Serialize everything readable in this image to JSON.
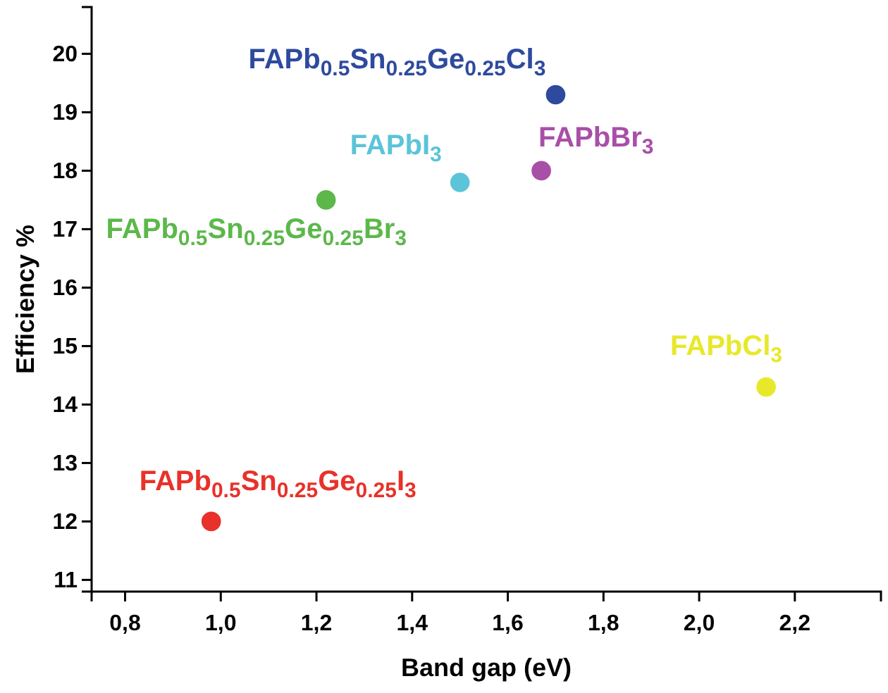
{
  "chart_data": {
    "type": "scatter",
    "xlabel": "Band gap (eV)",
    "ylabel": "Efficiency %",
    "xlim": [
      0.73,
      2.38
    ],
    "ylim": [
      10.8,
      20.8
    ],
    "xticks": [
      {
        "value": 0.8,
        "label": "0,8"
      },
      {
        "value": 1.0,
        "label": "1,0"
      },
      {
        "value": 1.2,
        "label": "1,2"
      },
      {
        "value": 1.4,
        "label": "1,4"
      },
      {
        "value": 1.6,
        "label": "1,6"
      },
      {
        "value": 1.8,
        "label": "1,8"
      },
      {
        "value": 2.0,
        "label": "2,0"
      },
      {
        "value": 2.2,
        "label": "2,2"
      }
    ],
    "yticks": [
      11,
      12,
      13,
      14,
      15,
      16,
      17,
      18,
      19,
      20
    ],
    "marker": "circle",
    "grid": false,
    "legend": false,
    "series": [
      {
        "name": "FAPb$_{0.5}$Sn$_{0.25}$Ge$_{0.25}$I$_{3}$",
        "color": "#e8312a",
        "x": [
          0.98
        ],
        "values": [
          12.0
        ]
      },
      {
        "name": "FAPb$_{0.5}$Sn$_{0.25}$Ge$_{0.25}$Br$_{3}$",
        "color": "#5cb84a",
        "x": [
          1.22
        ],
        "values": [
          17.5
        ]
      },
      {
        "name": "FAPbI$_{3}$",
        "color": "#5bc4d8",
        "x": [
          1.5
        ],
        "values": [
          17.8
        ]
      },
      {
        "name": "FAPbBr$_{3}$",
        "color": "#a84fa8",
        "x": [
          1.67
        ],
        "values": [
          18.0
        ]
      },
      {
        "name": "FAPb$_{0.5}$Sn$_{0.25}$Ge$_{0.25}$Cl$_{3}$",
        "color": "#2e4a9e",
        "x": [
          1.7
        ],
        "values": [
          19.3
        ]
      },
      {
        "name": "FAPbCl$_{3}$",
        "color": "#e8e82a",
        "x": [
          2.14
        ],
        "values": [
          14.3
        ]
      }
    ]
  }
}
